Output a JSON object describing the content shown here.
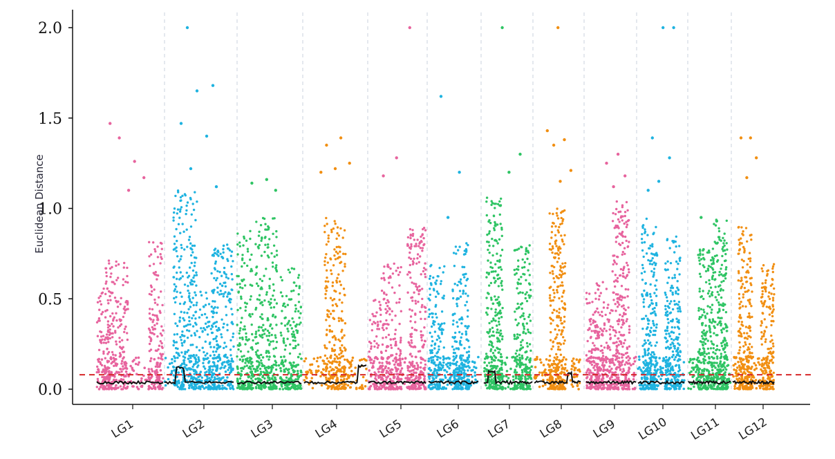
{
  "chart_data": {
    "type": "scatter",
    "subtype": "manhattan",
    "title": "",
    "xlabel": "",
    "ylabel": "Euclidean Distance",
    "ylim": [
      0,
      2.0
    ],
    "yticks": [
      "0.0",
      "0.5",
      "1.0",
      "1.5",
      "2.0"
    ],
    "threshold": {
      "value": 0.08,
      "color": "#d62728",
      "style": "dashed"
    },
    "grid": "vertical dashed separators between linkage groups",
    "series": [
      {
        "name": "LG1",
        "color": "#e7649e",
        "peak": 1.47,
        "blocks": [
          [
            0.06,
            0.56
          ],
          [
            0.3,
            0.72
          ],
          [
            0.95,
            0.86
          ]
        ],
        "outliers": [
          1.47,
          1.26,
          1.39,
          1.17,
          1.1
        ]
      },
      {
        "name": "LG2",
        "color": "#1fb3e0",
        "peak": 2.0,
        "blocks": [
          [
            0.3,
            1.1
          ],
          [
            0.6,
            0.56
          ],
          [
            0.85,
            0.8
          ]
        ],
        "outliers": [
          2.0,
          1.68,
          1.65,
          1.47,
          1.4,
          1.22,
          1.12
        ]
      },
      {
        "name": "LG3",
        "color": "#2fc464",
        "peak": 1.16,
        "blocks": [
          [
            0.08,
            0.88
          ],
          [
            0.45,
            0.95
          ],
          [
            0.85,
            0.68
          ]
        ],
        "outliers": [
          1.16,
          1.14,
          1.1
        ]
      },
      {
        "name": "LG4",
        "color": "#f18f12",
        "peak": 1.39,
        "blocks": [
          [
            0.5,
            0.95
          ]
        ],
        "outliers": [
          1.39,
          1.35,
          1.25,
          1.22,
          1.2
        ]
      },
      {
        "name": "LG5",
        "color": "#e7649e",
        "peak": 2.0,
        "blocks": [
          [
            0.08,
            0.5
          ],
          [
            0.4,
            0.7
          ],
          [
            0.85,
            0.9
          ]
        ],
        "outliers": [
          2.0,
          1.28,
          1.18
        ]
      },
      {
        "name": "LG6",
        "color": "#1fb3e0",
        "peak": 1.62,
        "blocks": [
          [
            0.15,
            0.7
          ],
          [
            0.65,
            0.82
          ]
        ],
        "outliers": [
          1.62,
          1.2,
          0.95
        ]
      },
      {
        "name": "LG7",
        "color": "#2fc464",
        "peak": 2.0,
        "blocks": [
          [
            0.22,
            1.06
          ],
          [
            0.8,
            0.8
          ]
        ],
        "outliers": [
          2.0,
          1.3,
          1.2
        ]
      },
      {
        "name": "LG8",
        "color": "#f18f12",
        "peak": 2.0,
        "blocks": [
          [
            0.5,
            1.0
          ]
        ],
        "outliers": [
          2.0,
          1.43,
          1.38,
          1.35,
          1.21,
          1.15
        ]
      },
      {
        "name": "LG9",
        "color": "#e7649e",
        "peak": 1.3,
        "blocks": [
          [
            0.08,
            0.55
          ],
          [
            0.35,
            0.6
          ],
          [
            0.7,
            1.05
          ]
        ],
        "outliers": [
          1.3,
          1.25,
          1.18,
          1.12
        ]
      },
      {
        "name": "LG10",
        "color": "#1fb3e0",
        "peak": 2.0,
        "blocks": [
          [
            0.25,
            0.95
          ],
          [
            0.75,
            0.85
          ]
        ],
        "outliers": [
          2.0,
          2.0,
          1.39,
          1.28,
          1.15,
          1.1
        ]
      },
      {
        "name": "LG11",
        "color": "#2fc464",
        "peak": 0.95,
        "blocks": [
          [
            0.4,
            0.78
          ],
          [
            0.75,
            0.95
          ]
        ],
        "outliers": [
          0.95,
          0.93
        ]
      },
      {
        "name": "LG12",
        "color": "#f18f12",
        "peak": 1.39,
        "blocks": [
          [
            0.3,
            0.9
          ],
          [
            0.85,
            0.7
          ]
        ],
        "outliers": [
          1.39,
          1.39,
          1.28,
          1.17
        ]
      }
    ]
  }
}
